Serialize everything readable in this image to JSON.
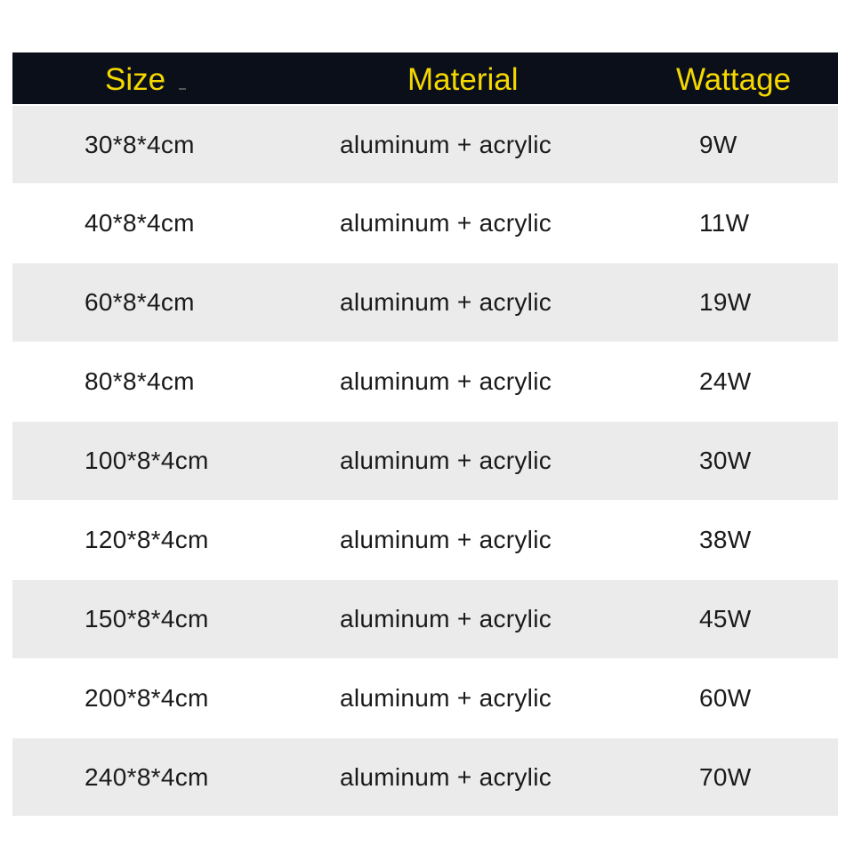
{
  "colors": {
    "header_bg": "#0b0f1a",
    "header_text": "#f5d800",
    "stripe": "#ebebeb"
  },
  "headers": [
    "Size",
    "Material",
    "Wattage"
  ],
  "rows": [
    {
      "size": "30*8*4cm",
      "material": "aluminum + acrylic",
      "wattage": "9W"
    },
    {
      "size": "40*8*4cm",
      "material": "aluminum + acrylic",
      "wattage": "11W"
    },
    {
      "size": "60*8*4cm",
      "material": "aluminum + acrylic",
      "wattage": "19W"
    },
    {
      "size": "80*8*4cm",
      "material": "aluminum + acrylic",
      "wattage": "24W"
    },
    {
      "size": "100*8*4cm",
      "material": "aluminum + acrylic",
      "wattage": "30W"
    },
    {
      "size": "120*8*4cm",
      "material": "aluminum + acrylic",
      "wattage": "38W"
    },
    {
      "size": "150*8*4cm",
      "material": "aluminum + acrylic",
      "wattage": "45W"
    },
    {
      "size": "200*8*4cm",
      "material": "aluminum + acrylic",
      "wattage": "60W"
    },
    {
      "size": "240*8*4cm",
      "material": "aluminum + acrylic",
      "wattage": "70W"
    }
  ]
}
